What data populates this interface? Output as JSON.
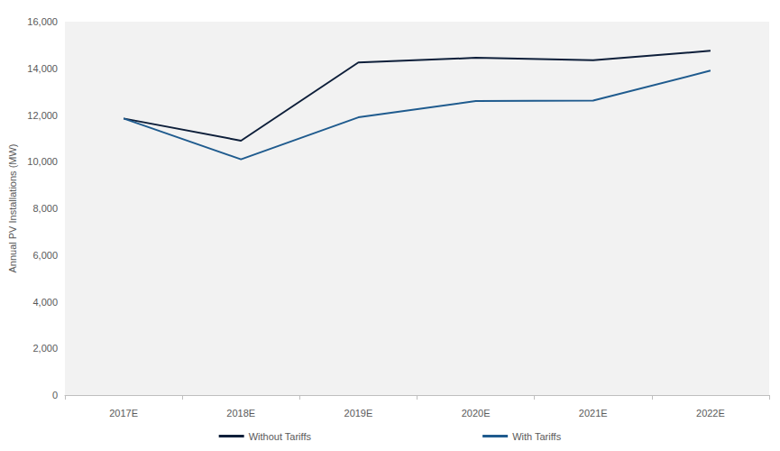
{
  "chart_data": {
    "type": "line",
    "y_label": "Annual PV Installations (MW)",
    "categories": [
      "2017E",
      "2018E",
      "2019E",
      "2020E",
      "2021E",
      "2022E"
    ],
    "series": [
      {
        "name": "Without Tariffs",
        "color": "#0e1f3a",
        "values": [
          11850,
          10900,
          14250,
          14450,
          14350,
          14750
        ]
      },
      {
        "name": "With Tariffs",
        "color": "#1f5b8e",
        "values": [
          11850,
          10100,
          11900,
          12600,
          12620,
          13900
        ]
      }
    ],
    "ylim": [
      0,
      16000
    ],
    "yticks": [
      0,
      {
        "value": 2000,
        "label": "2,000"
      },
      {
        "value": 4000,
        "label": "4,000"
      },
      {
        "value": 6000,
        "label": "6,000"
      },
      {
        "value": 8000,
        "label": "8,000"
      },
      {
        "value": 10000,
        "label": "10,000"
      },
      {
        "value": 12000,
        "label": "12,000"
      },
      {
        "value": 14000,
        "label": "14,000"
      },
      {
        "value": 16000,
        "label": "16,000"
      }
    ],
    "grid": false,
    "legend": "bottom"
  }
}
